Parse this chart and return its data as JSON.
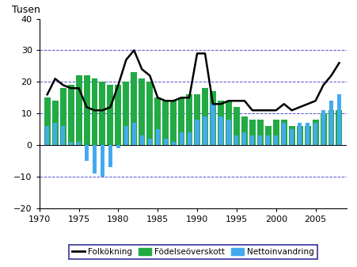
{
  "years": [
    1971,
    1972,
    1973,
    1974,
    1975,
    1976,
    1977,
    1978,
    1979,
    1980,
    1981,
    1982,
    1983,
    1984,
    1985,
    1986,
    1987,
    1988,
    1989,
    1990,
    1991,
    1992,
    1993,
    1994,
    1995,
    1996,
    1997,
    1998,
    1999,
    2000,
    2001,
    2002,
    2003,
    2004,
    2005,
    2006,
    2007,
    2008
  ],
  "fodelseover": [
    15,
    14,
    18,
    19,
    22,
    22,
    21,
    20,
    19,
    19,
    20,
    23,
    21,
    20,
    15,
    14,
    14,
    15,
    16,
    16,
    18,
    17,
    14,
    14,
    12,
    9,
    8,
    8,
    6,
    8,
    8,
    6,
    6,
    6,
    8,
    10,
    11,
    11
  ],
  "nettoinvandring": [
    6,
    7,
    6,
    1,
    1,
    -5,
    -9,
    -10,
    -7,
    -1,
    6,
    7,
    3,
    2,
    5,
    2,
    1,
    4,
    4,
    8,
    9,
    13,
    9,
    8,
    3,
    4,
    3,
    3,
    3,
    3,
    7,
    5,
    7,
    7,
    7,
    11,
    14,
    16
  ],
  "folkoning": [
    16,
    21,
    19,
    18,
    18,
    12,
    11,
    11,
    12,
    19,
    27,
    30,
    24,
    22,
    15,
    14,
    14,
    15,
    15,
    29,
    29,
    13,
    13,
    14,
    14,
    14,
    11,
    11,
    11,
    11,
    13,
    11,
    12,
    13,
    14,
    19,
    22,
    26
  ],
  "bar_color_green": "#22AA44",
  "bar_color_blue": "#44AAEE",
  "line_color": "#000000",
  "grid_color": "#3333CC",
  "ylim": [
    -20,
    40
  ],
  "yticks": [
    -20,
    -10,
    0,
    10,
    20,
    30,
    40
  ],
  "grid_yticks": [
    -10,
    10,
    20,
    30
  ],
  "ylabel": "Tusen",
  "xlim_min": 1970.3,
  "xlim_max": 2009.0,
  "xticks": [
    1970,
    1975,
    1980,
    1985,
    1990,
    1995,
    2000,
    2005
  ],
  "legend_folkoning": "Folkökning",
  "legend_fodelse": "Födelseöverskott",
  "legend_netto": "Nettoinvandring",
  "background_color": "#FFFFFF"
}
